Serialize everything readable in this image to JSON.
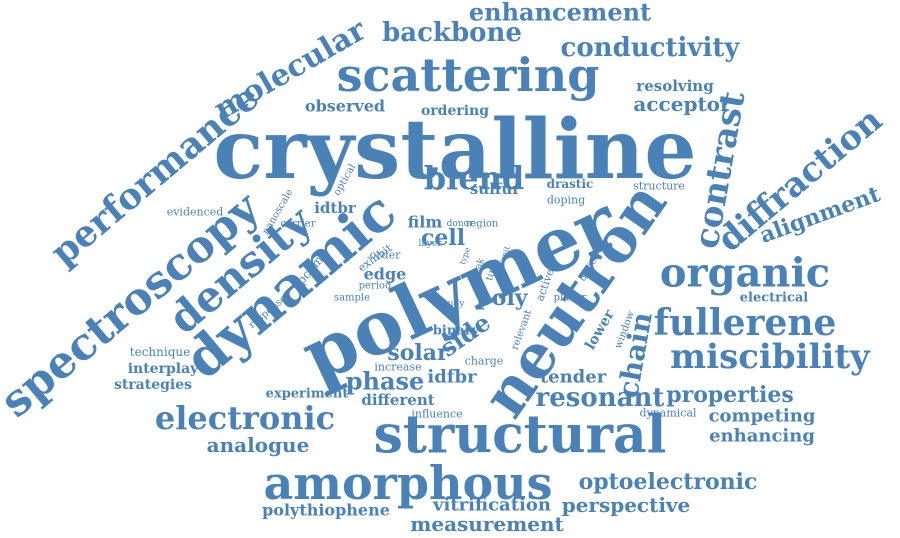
{
  "color": "#4a82b8",
  "words": [
    "crystalline",
    "polymer",
    "neutron",
    "dynamic",
    "structural",
    "scattering",
    "amorphous",
    "spectroscopy",
    "density",
    "blend",
    "organic",
    "miscibility",
    "fullerene",
    "contrast",
    "diffraction",
    "performance",
    "electronic",
    "molecular",
    "backbone",
    "conductivity",
    "enhancement",
    "optoelectronic",
    "properties",
    "resonant",
    "alignment",
    "phase",
    "solar",
    "chain",
    "analogue",
    "competing",
    "enhancing",
    "perspective",
    "measurement",
    "vitrification",
    "polythiophene",
    "observed",
    "ordering",
    "acceptor",
    "resolving",
    "idtbr",
    "idfbr",
    "poly",
    "side",
    "cell",
    "film",
    "sulfur",
    "drastic",
    "structure",
    "doping",
    "tender",
    "electrical",
    "different",
    "experiment",
    "strategies",
    "interplay",
    "technique",
    "edge",
    "lower",
    "increase",
    "charge",
    "binary",
    "evidenced",
    "nanoscale",
    "optical",
    "carrier",
    "exhibit",
    "order",
    "period",
    "sample",
    "response",
    "pcbm",
    "influence",
    "dynamical",
    "window",
    "planar",
    "device",
    "relevant",
    "active",
    "study",
    "weak",
    "time",
    "unit",
    "type",
    "layer",
    "region",
    "donor"
  ],
  "aria_label": "Word cloud"
}
